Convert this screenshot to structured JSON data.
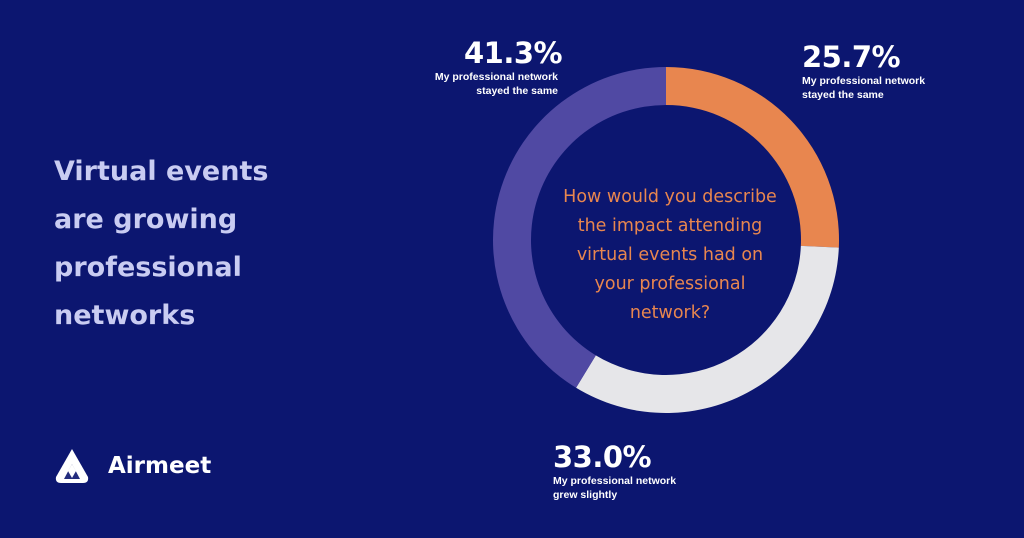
{
  "headline": "Virtual events are growing professional networks",
  "brand": {
    "name": "Airmeet",
    "logo_icon": "airmeet-logo-icon"
  },
  "colors": {
    "background": "#0c1670",
    "orange": "#e8864f",
    "purple": "#5049a3",
    "light_gray": "#e6e6e9",
    "headline": "#c9ccf2"
  },
  "chart_data": {
    "type": "pie",
    "style": "donut",
    "title": "How would you describe the impact attending virtual events had on your professional network?",
    "unit": "%",
    "slices": [
      {
        "label": "My professional network stayed the same",
        "value": 25.7,
        "value_label": "25.7%",
        "color": "#e8864f"
      },
      {
        "label": "My professional network grew slightly",
        "value": 33.0,
        "value_label": "33.0%",
        "color": "#e6e6e9"
      },
      {
        "label": "My professional network stayed the same",
        "value": 41.3,
        "value_label": "41.3%",
        "color": "#5049a3"
      }
    ],
    "legend": "none"
  }
}
